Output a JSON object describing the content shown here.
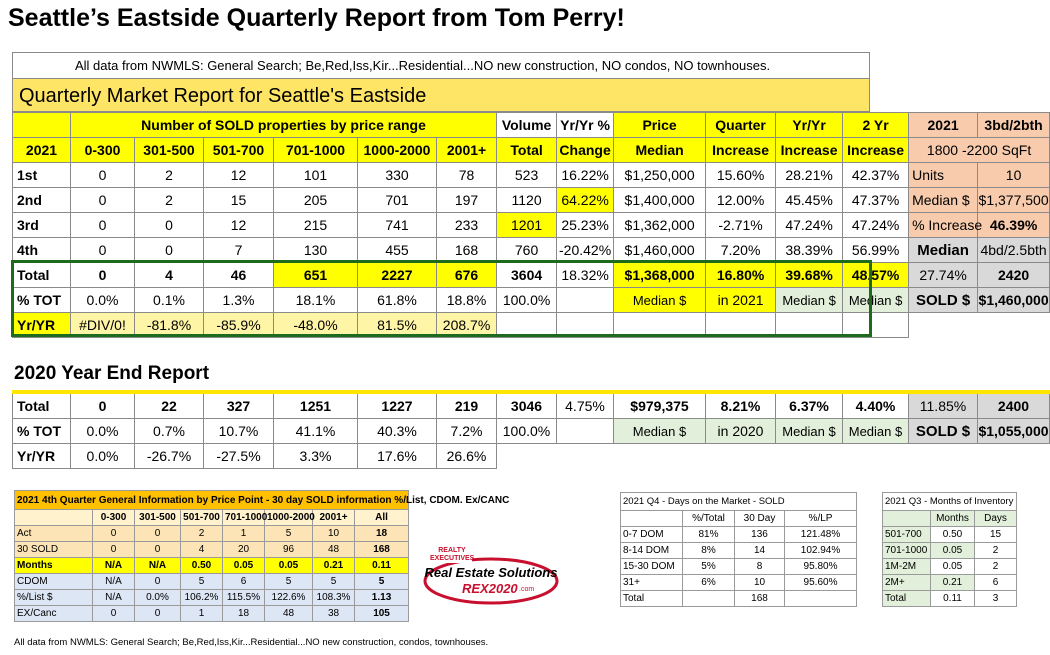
{
  "title": "Seattle’s Eastside Quarterly Report from Tom Perry!",
  "info_line": "All data from NWMLS: General Search; Be,Red,Iss,Kir...Residential...NO new construction, NO condos, NO townhouses.",
  "quarterly_header": "Quarterly Market Report for Seattle's Eastside",
  "header": {
    "sold_by_range": "Number of SOLD properties by price range",
    "volume": "Volume",
    "yryr_pct": "Yr/Yr %",
    "price": "Price",
    "quarter": "Quarter",
    "yryr": "Yr/Yr",
    "two_yr": "2 Yr",
    "year": "2021",
    "ranges": [
      "0-300",
      "301-500",
      "501-700",
      "701-1000",
      "1000-2000",
      "2001+"
    ],
    "total": "Total",
    "change": "Change",
    "median": "Median",
    "increase": "Increase"
  },
  "rows": [
    {
      "label": "1st",
      "vals": [
        "0",
        "2",
        "12",
        "101",
        "330",
        "78",
        "523",
        "16.22%",
        "$1,250,000",
        "15.60%",
        "28.21%",
        "42.37%"
      ]
    },
    {
      "label": "2nd",
      "vals": [
        "0",
        "2",
        "15",
        "205",
        "701",
        "197",
        "1120",
        "64.22%",
        "$1,400,000",
        "12.00%",
        "45.45%",
        "47.37%"
      ]
    },
    {
      "label": "3rd",
      "vals": [
        "0",
        "0",
        "12",
        "215",
        "741",
        "233",
        "1201",
        "25.23%",
        "$1,362,000",
        "-2.71%",
        "47.24%",
        "47.24%"
      ]
    },
    {
      "label": "4th",
      "vals": [
        "0",
        "0",
        "7",
        "130",
        "455",
        "168",
        "760",
        "-20.42%",
        "$1,460,000",
        "7.20%",
        "38.39%",
        "56.99%"
      ]
    }
  ],
  "total_row": {
    "label": "Total",
    "vals": [
      "0",
      "4",
      "46",
      "651",
      "2227",
      "676",
      "3604",
      "18.32%",
      "$1,368,000",
      "16.80%",
      "39.68%",
      "48.57%"
    ]
  },
  "pct_row": {
    "label": "% TOT",
    "vals": [
      "0.0%",
      "0.1%",
      "1.3%",
      "18.1%",
      "61.8%",
      "18.8%",
      "100.0%",
      "",
      "Median $",
      "in 2021",
      "Median $",
      "Median $"
    ]
  },
  "yr_row": {
    "label": "Yr/YR",
    "vals": [
      "#DIV/0!",
      "-81.8%",
      "-85.9%",
      "-48.0%",
      "81.5%",
      "208.7%"
    ]
  },
  "side": {
    "year": "2021",
    "type": "3bd/2bth",
    "sqft": "1800 -2200 SqFt",
    "units_label": "Units",
    "units": "10",
    "median_label": "Median $",
    "median": "$1,377,500",
    "pct_inc_label": "% Increase",
    "pct_inc": "46.39%",
    "median_head": "Median",
    "median_type": "4bd/2.5bth",
    "pct": "27.74%",
    "sqft_val": "2420",
    "sold_label": "SOLD $",
    "sold": "$1,460,000"
  },
  "year_end": {
    "title": "2020 Year End Report",
    "total": {
      "label": "Total",
      "vals": [
        "0",
        "22",
        "327",
        "1251",
        "1227",
        "219",
        "3046",
        "4.75%",
        "$979,375",
        "8.21%",
        "6.37%",
        "4.40%"
      ]
    },
    "pct": {
      "label": "% TOT",
      "vals": [
        "0.0%",
        "0.7%",
        "10.7%",
        "41.1%",
        "40.3%",
        "7.2%",
        "100.0%",
        "",
        "Median $",
        "in 2020",
        "Median $",
        "Median $"
      ]
    },
    "yr": {
      "label": "Yr/YR",
      "vals": [
        "0.0%",
        "-26.7%",
        "-27.5%",
        "3.3%",
        "17.6%",
        "26.6%"
      ]
    },
    "side_pct": "11.85%",
    "side_sqft": "2400",
    "sold_label": "SOLD $",
    "sold": "$1,055,000"
  },
  "q4_general": {
    "title": "2021 4th Quarter General Information by Price Point  - 30 day SOLD information %/List, CDOM.  Ex/CANC",
    "cols": [
      "0-300",
      "301-500",
      "501-700",
      "701-1000",
      "1000-2000",
      "2001+",
      "All"
    ],
    "rows": [
      {
        "label": "Act",
        "vals": [
          "0",
          "0",
          "2",
          "1",
          "5",
          "10",
          "18"
        ]
      },
      {
        "label": "30 SOLD",
        "vals": [
          "0",
          "0",
          "4",
          "20",
          "96",
          "48",
          "168"
        ]
      },
      {
        "label": "Months",
        "vals": [
          "N/A",
          "N/A",
          "0.50",
          "0.05",
          "0.05",
          "0.21",
          "0.11"
        ]
      },
      {
        "label": "CDOM",
        "vals": [
          "N/A",
          "0",
          "5",
          "6",
          "5",
          "5",
          "5"
        ]
      },
      {
        "label": "%/List $",
        "vals": [
          "N/A",
          "0.0%",
          "106.2%",
          "115.5%",
          "122.6%",
          "108.3%",
          "1.13"
        ]
      },
      {
        "label": "EX/Canc",
        "vals": [
          "0",
          "0",
          "1",
          "18",
          "48",
          "38",
          "105"
        ]
      }
    ],
    "footnote": "All data from NWMLS: General Search; Be,Red,Iss,Kir...Residential...NO new construction, condos, townhouses."
  },
  "logo": {
    "brand": "REALTY EXECUTIVES",
    "name": "Real Estate Solutions",
    "sub": "REX2020",
    "domain": ".com"
  },
  "dom": {
    "title": "2021 Q4 - Days on the Market - SOLD",
    "cols": [
      "%/Total",
      "30 Day",
      "%/LP"
    ],
    "rows": [
      {
        "label": "0-7 DOM",
        "vals": [
          "81%",
          "136",
          "121.48%"
        ]
      },
      {
        "label": "8-14 DOM",
        "vals": [
          "8%",
          "14",
          "102.94%"
        ]
      },
      {
        "label": "15-30 DOM",
        "vals": [
          "5%",
          "8",
          "95.80%"
        ]
      },
      {
        "label": "31+",
        "vals": [
          "6%",
          "10",
          "95.60%"
        ]
      },
      {
        "label": "Total",
        "vals": [
          "",
          "168",
          ""
        ]
      }
    ]
  },
  "moi": {
    "title": "2021 Q3 - Months of Inventory",
    "cols": [
      "Months",
      "Days"
    ],
    "rows": [
      {
        "label": "501-700",
        "vals": [
          "0.50",
          "15"
        ]
      },
      {
        "label": "701-1000",
        "vals": [
          "0.05",
          "2"
        ]
      },
      {
        "label": "1M-2M",
        "vals": [
          "0.05",
          "2"
        ]
      },
      {
        "label": "2M+",
        "vals": [
          "0.21",
          "6"
        ]
      },
      {
        "label": "Total",
        "vals": [
          "0.11",
          "3"
        ]
      }
    ]
  },
  "colors": {
    "yellow": "#ffff00",
    "green_outline": "#1e6b1e",
    "salmon": "#f8cbad",
    "pale_green": "#e2efda"
  }
}
